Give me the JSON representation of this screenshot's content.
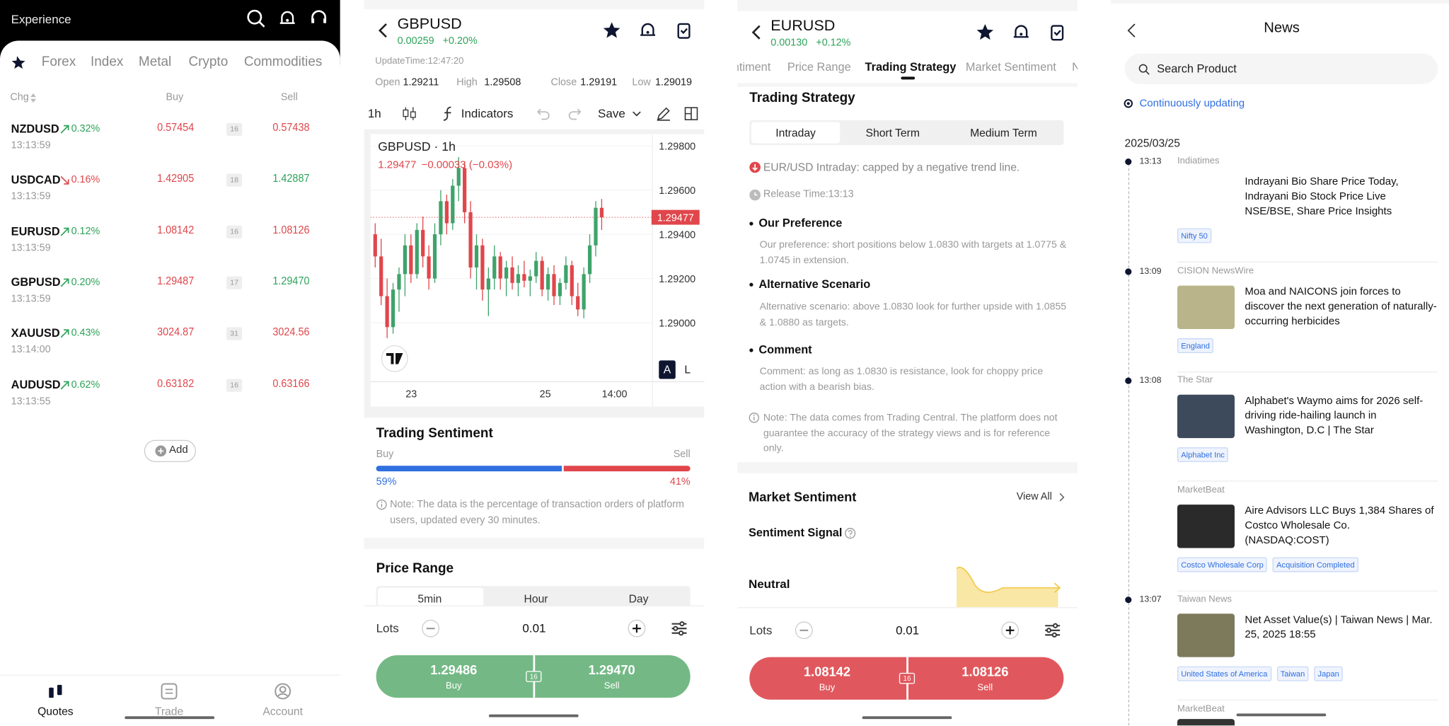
{
  "quotes_screen": {
    "header": {
      "title": "Experience"
    },
    "tabs": [
      "Forex",
      "Index",
      "Metal",
      "Crypto",
      "Commodities"
    ],
    "columns": {
      "change": "Chg",
      "buy": "Buy",
      "sell": "Sell"
    },
    "rows": [
      {
        "symbol": "NZDUSD",
        "change": "0.32%",
        "time": "13:13:59",
        "buy": "0.57454",
        "spread": "16",
        "sell": "0.57438"
      },
      {
        "symbol": "USDCAD",
        "change": "0.16%",
        "time": "13:13:59",
        "buy": "1.42905",
        "spread": "18",
        "sell": "1.42887"
      },
      {
        "symbol": "EURUSD",
        "change": "0.12%",
        "time": "13:13:59",
        "buy": "1.08142",
        "spread": "16",
        "sell": "1.08126"
      },
      {
        "symbol": "GBPUSD",
        "change": "0.20%",
        "time": "13:13:59",
        "buy": "1.29487",
        "spread": "17",
        "sell": "1.29470"
      },
      {
        "symbol": "XAUUSD",
        "change": "0.43%",
        "time": "13:14:00",
        "buy": "3024.87",
        "spread": "31",
        "sell": "3024.56"
      },
      {
        "symbol": "AUDUSD",
        "change": "0.62%",
        "time": "13:13:55",
        "buy": "0.63182",
        "spread": "16",
        "sell": "0.63166"
      }
    ],
    "add_button": "Add",
    "nav": [
      "Quotes",
      "Trade",
      "Account"
    ]
  },
  "gbpusd_screen": {
    "symbol": "GBPUSD",
    "change": "0.00259",
    "change_pct": "+0.20%",
    "update_time": "UpdateTime:12:47:20",
    "ohlc": [
      {
        "label": "Open",
        "value": "1.29211"
      },
      {
        "label": "High",
        "value": "1.29508"
      },
      {
        "label": "Close",
        "value": "1.29191"
      },
      {
        "label": "Low",
        "value": "1.29019"
      }
    ],
    "toolbar": {
      "interval": "1h",
      "indicators": "Indicators",
      "save": "Save"
    },
    "candle_chart": {
      "legend_title": "GBPUSD · 1h",
      "legend_price": "1.29477",
      "legend_change": "−0.00033 (−0.03%)",
      "price_tag": "1.29477",
      "ylim": [
        1.28733,
        1.29854
      ],
      "yticks": [
        {
          "value": 1.298,
          "label": "1.29800"
        },
        {
          "value": 1.296,
          "label": "1.29600"
        },
        {
          "value": 1.294,
          "label": "1.29400"
        },
        {
          "value": 1.292,
          "label": "1.29200"
        },
        {
          "value": 1.29,
          "label": "1.29000"
        }
      ],
      "x_labels": [
        "23",
        "25",
        "14:00"
      ],
      "scale_buttons": [
        "A",
        "L"
      ],
      "candles": [
        [
          1.294,
          1.2945,
          1.2925,
          1.293
        ],
        [
          1.293,
          1.2938,
          1.2908,
          1.2912
        ],
        [
          1.2912,
          1.292,
          1.2893,
          1.2898
        ],
        [
          1.2898,
          1.2918,
          1.2895,
          1.2915
        ],
        [
          1.2915,
          1.2925,
          1.2905,
          1.2922
        ],
        [
          1.2922,
          1.294,
          1.2912,
          1.2935
        ],
        [
          1.2935,
          1.294,
          1.2918,
          1.2922
        ],
        [
          1.2922,
          1.2945,
          1.292,
          1.2942
        ],
        [
          1.2942,
          1.2948,
          1.2925,
          1.293
        ],
        [
          1.293,
          1.2935,
          1.2915,
          1.292
        ],
        [
          1.292,
          1.2945,
          1.2918,
          1.294
        ],
        [
          1.294,
          1.296,
          1.2935,
          1.2955
        ],
        [
          1.2955,
          1.2958,
          1.294,
          1.2945
        ],
        [
          1.2945,
          1.2965,
          1.2942,
          1.2962
        ],
        [
          1.2962,
          1.2975,
          1.2955,
          1.297
        ],
        [
          1.297,
          1.2973,
          1.2945,
          1.295
        ],
        [
          1.295,
          1.2955,
          1.292,
          1.2925
        ],
        [
          1.2925,
          1.294,
          1.2915,
          1.2935
        ],
        [
          1.2935,
          1.2938,
          1.291,
          1.2915
        ],
        [
          1.2915,
          1.2925,
          1.2903,
          1.292
        ],
        [
          1.292,
          1.2935,
          1.2915,
          1.293
        ],
        [
          1.293,
          1.2932,
          1.2915,
          1.292
        ],
        [
          1.292,
          1.2928,
          1.2912,
          1.2925
        ],
        [
          1.2925,
          1.293,
          1.2915,
          1.2918
        ],
        [
          1.2918,
          1.2926,
          1.2912,
          1.2922
        ],
        [
          1.2922,
          1.2928,
          1.2916,
          1.2919
        ],
        [
          1.2919,
          1.2924,
          1.2912,
          1.2921
        ],
        [
          1.2921,
          1.2932,
          1.2918,
          1.2928
        ],
        [
          1.2928,
          1.293,
          1.2912,
          1.2915
        ],
        [
          1.2915,
          1.2925,
          1.291,
          1.2922
        ],
        [
          1.2922,
          1.2926,
          1.2908,
          1.2912
        ],
        [
          1.2912,
          1.292,
          1.2908,
          1.2918
        ],
        [
          1.2918,
          1.293,
          1.2915,
          1.2926
        ],
        [
          1.2926,
          1.2928,
          1.2908,
          1.2912
        ],
        [
          1.2912,
          1.2918,
          1.2903,
          1.2906
        ],
        [
          1.2906,
          1.2925,
          1.2902,
          1.2922
        ],
        [
          1.2922,
          1.294,
          1.2918,
          1.2935
        ],
        [
          1.2935,
          1.2955,
          1.293,
          1.2952
        ],
        [
          1.2952,
          1.2956,
          1.2942,
          1.29477
        ]
      ]
    },
    "sentiment": {
      "title": "Trading Sentiment",
      "buy_label": "Buy",
      "sell_label": "Sell",
      "buy": {
        "value": 59,
        "label": "59%"
      },
      "sell": {
        "value": 41,
        "label": "41%"
      },
      "note": "Note: The data is the percentage of transaction orders of platform users, updated every 30 minutes."
    },
    "price_range": {
      "title": "Price Range",
      "tabs": [
        "5min",
        "Hour",
        "Day"
      ]
    },
    "order": {
      "lots_label": "Lots",
      "lots": "0.01",
      "buy_price": "1.29486",
      "buy": "Buy",
      "spread": "16",
      "sell_price": "1.29470",
      "sell": "Sell"
    }
  },
  "eurusd_screen": {
    "symbol": "EURUSD",
    "change": "0.00130",
    "change_pct": "+0.12%",
    "tabs": [
      "Sentiment",
      "Price Range",
      "Trading Strategy",
      "Market Sentiment",
      "News"
    ],
    "strategy": {
      "title": "Trading Strategy",
      "subtabs": [
        "Intraday",
        "Short Term",
        "Medium Term"
      ],
      "headline": "EUR/USD Intraday: capped by a negative trend line.",
      "release_time": "Release Time:13:13",
      "sections": [
        {
          "title": "Our Preference",
          "text": "Our preference: short positions below 1.0830 with targets at 1.0775 & 1.0745 in extension."
        },
        {
          "title": "Alternative Scenario",
          "text": "Alternative scenario: above 1.0830 look for further upside with 1.0855 & 1.0880 as targets."
        },
        {
          "title": "Comment",
          "text": "Comment: as long as 1.0830 is resistance, look for choppy price action with a bearish bias."
        }
      ],
      "note": "Note: The data comes from Trading Central. The platform does not guarantee the accuracy of the strategy views and is for reference only."
    },
    "market_sentiment": {
      "title": "Market Sentiment",
      "view_all": "View All",
      "signal_title": "Sentiment Signal",
      "signal": "Neutral"
    },
    "order": {
      "lots_label": "Lots",
      "lots": "0.01",
      "buy_price": "1.08142",
      "buy": "Buy",
      "spread": "16",
      "sell_price": "1.08126",
      "sell": "Sell"
    }
  },
  "news_screen": {
    "title": "News",
    "search_placeholder": "Search Product",
    "status": "Continuously updating",
    "date": "2025/03/25",
    "items": [
      {
        "time": "13:13",
        "source": "Indiatimes",
        "title": "Indrayani Bio Share Price Today, Indrayani Bio Stock Price Live NSE/BSE, Share Price Insights",
        "tags": [
          "Nifty 50"
        ]
      },
      {
        "time": "13:09",
        "source": "CISION NewsWire",
        "title": "Moa and NAICONS join forces to discover the next generation of naturally-occurring herbicides",
        "tags": [
          "England"
        ]
      },
      {
        "time": "13:08",
        "source": "The Star",
        "title": "Alphabet's Waymo aims for 2026 self-driving ride-hailing launch in Washington, D.C | The Star",
        "tags": [
          "Alphabet Inc"
        ]
      },
      {
        "source": "MarketBeat",
        "title": "Aire Advisors LLC Buys 1,384 Shares of Costco Wholesale Co. (NASDAQ:COST)",
        "tags": [
          "Costco Wholesale Corp",
          "Acquisition Completed"
        ]
      },
      {
        "time": "13:07",
        "source": "Taiwan News",
        "title": "Net Asset Value(s) | Taiwan News | Mar. 25, 2025 18:55",
        "tags": [
          "United States of America",
          "Taiwan",
          "Japan"
        ]
      },
      {
        "source": "MarketBeat"
      }
    ]
  }
}
